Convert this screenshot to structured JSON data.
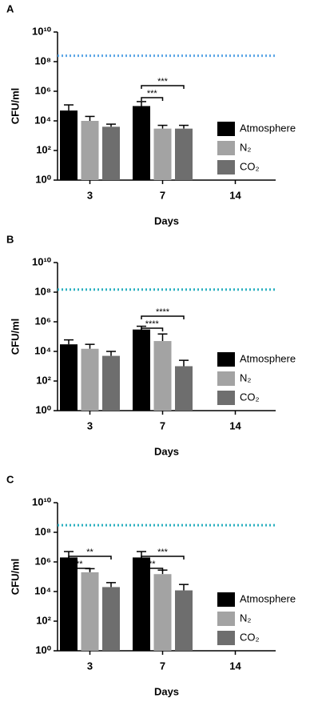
{
  "chart_data": [
    {
      "type": "bar",
      "panel_label": "A",
      "ylabel": "CFU/ml",
      "xlabel": "Days",
      "log_scale": true,
      "categories": [
        "3",
        "7",
        "14"
      ],
      "series": [
        {
          "name": "Atmosphere",
          "color": "#000000",
          "values": [
            50000,
            100000,
            null
          ],
          "errors": [
            70000,
            100000,
            null
          ]
        },
        {
          "name": "N₂",
          "color": "#a3a3a3",
          "values": [
            10000,
            3000,
            null
          ],
          "errors": [
            10000,
            2000,
            null
          ]
        },
        {
          "name": "CO₂",
          "color": "#6e6e6e",
          "values": [
            4000,
            3000,
            null
          ],
          "errors": [
            2000,
            2000,
            null
          ]
        }
      ],
      "reference_line": {
        "value": 250000000,
        "color": "#5aa5e6"
      },
      "annotations": [
        {
          "text": "***",
          "category": 1,
          "from": 0,
          "to": 2
        },
        {
          "text": "***",
          "category": 1,
          "from": 0,
          "to": 1
        }
      ],
      "ylim": [
        1,
        10000000000
      ],
      "yticks": [
        {
          "value": 1,
          "label": "10⁰"
        },
        {
          "value": 100,
          "label": "10²"
        },
        {
          "value": 10000,
          "label": "10⁴"
        },
        {
          "value": 1000000,
          "label": "10⁶"
        },
        {
          "value": 100000000,
          "label": "10⁸"
        },
        {
          "value": 10000000000,
          "label": "10¹⁰"
        }
      ]
    },
    {
      "type": "bar",
      "panel_label": "B",
      "ylabel": "CFU/ml",
      "xlabel": "Days",
      "log_scale": true,
      "categories": [
        "3",
        "7",
        "14"
      ],
      "series": [
        {
          "name": "Atmosphere",
          "color": "#000000",
          "values": [
            30000,
            300000,
            null
          ],
          "errors": [
            30000,
            200000,
            null
          ]
        },
        {
          "name": "N₂",
          "color": "#a3a3a3",
          "values": [
            15000,
            50000,
            null
          ],
          "errors": [
            15000,
            100000,
            null
          ]
        },
        {
          "name": "CO₂",
          "color": "#6e6e6e",
          "values": [
            5000,
            1000,
            null
          ],
          "errors": [
            5000,
            1500,
            null
          ]
        }
      ],
      "reference_line": {
        "value": 150000000,
        "color": "#2ab0c0"
      },
      "annotations": [
        {
          "text": "****",
          "category": 1,
          "from": 0,
          "to": 2
        },
        {
          "text": "****",
          "category": 1,
          "from": 0,
          "to": 1
        }
      ],
      "ylim": [
        1,
        10000000000
      ],
      "yticks": [
        {
          "value": 1,
          "label": "10⁰"
        },
        {
          "value": 100,
          "label": "10²"
        },
        {
          "value": 10000,
          "label": "10⁴"
        },
        {
          "value": 1000000,
          "label": "10⁶"
        },
        {
          "value": 100000000,
          "label": "10⁸"
        },
        {
          "value": 10000000000,
          "label": "10¹⁰"
        }
      ]
    },
    {
      "type": "bar",
      "panel_label": "C",
      "ylabel": "CFU/ml",
      "xlabel": "Days",
      "log_scale": true,
      "categories": [
        "3",
        "7",
        "14"
      ],
      "series": [
        {
          "name": "Atmosphere",
          "color": "#000000",
          "values": [
            2000000,
            2000000,
            null
          ],
          "errors": [
            3000000,
            3000000,
            null
          ]
        },
        {
          "name": "N₂",
          "color": "#a3a3a3",
          "values": [
            200000,
            150000,
            null
          ],
          "errors": [
            150000,
            130000,
            null
          ]
        },
        {
          "name": "CO₂",
          "color": "#6e6e6e",
          "values": [
            20000,
            12000,
            null
          ],
          "errors": [
            20000,
            18000,
            null
          ]
        }
      ],
      "reference_line": {
        "value": 300000000,
        "color": "#2ab0c0"
      },
      "annotations": [
        {
          "text": "**",
          "category": 0,
          "from": 0,
          "to": 2
        },
        {
          "text": "**",
          "category": 0,
          "from": 0,
          "to": 1
        },
        {
          "text": "***",
          "category": 1,
          "from": 0,
          "to": 2
        },
        {
          "text": "**",
          "category": 1,
          "from": 0,
          "to": 1
        }
      ],
      "ylim": [
        1,
        10000000000
      ],
      "yticks": [
        {
          "value": 1,
          "label": "10⁰"
        },
        {
          "value": 100,
          "label": "10²"
        },
        {
          "value": 10000,
          "label": "10⁴"
        },
        {
          "value": 1000000,
          "label": "10⁶"
        },
        {
          "value": 100000000,
          "label": "10⁸"
        },
        {
          "value": 10000000000,
          "label": "10¹⁰"
        }
      ]
    }
  ]
}
